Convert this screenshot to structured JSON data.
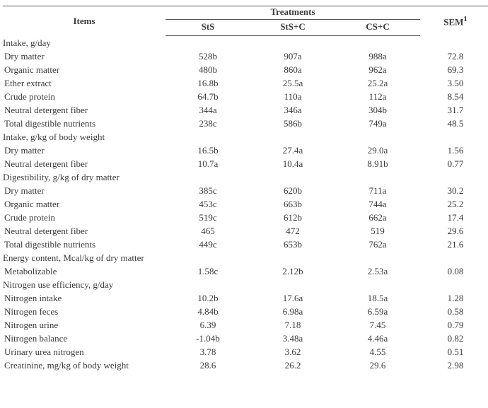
{
  "header": {
    "items": "Items",
    "treatments": "Treatments",
    "sem": "SEM",
    "sem_sup": "1",
    "sub": [
      "StS",
      "StS+C",
      "CS+C"
    ]
  },
  "rows": [
    {
      "section": true,
      "label": "Intake, g/day"
    },
    {
      "label": "Dry matter",
      "v": [
        "528b",
        "907a",
        "988a"
      ],
      "sem": "72.8"
    },
    {
      "label": "Organic matter",
      "v": [
        "480b",
        "860a",
        "962a"
      ],
      "sem": "69.3"
    },
    {
      "label": "Ether extract",
      "v": [
        "16.8b",
        "25.5a",
        "25.2a"
      ],
      "sem": "3.50"
    },
    {
      "label": "Crude protein",
      "v": [
        "64.7b",
        "110a",
        "112a"
      ],
      "sem": "8.54"
    },
    {
      "label": "Neutral detergent fiber",
      "v": [
        "344a",
        "346a",
        "304b"
      ],
      "sem": "31.7"
    },
    {
      "label": "Total digestible nutrients",
      "v": [
        "238c",
        "586b",
        "749a"
      ],
      "sem": "48.5"
    },
    {
      "section": true,
      "label": "Intake, g/kg of body weight"
    },
    {
      "label": "Dry matter",
      "v": [
        "16.5b",
        "27.4a",
        "29.0a"
      ],
      "sem": "1.56"
    },
    {
      "label": "Neutral detergent fiber",
      "v": [
        "10.7a",
        "10.4a",
        "8.91b"
      ],
      "sem": "0.77"
    },
    {
      "section": true,
      "label": "Digestibility, g/kg of dry matter"
    },
    {
      "label": "Dry matter",
      "v": [
        "385c",
        "620b",
        "711a"
      ],
      "sem": "30.2"
    },
    {
      "label": "Organic matter",
      "v": [
        "453c",
        "663b",
        "744a"
      ],
      "sem": "25.2"
    },
    {
      "label": "Crude protein",
      "v": [
        "519c",
        "612b",
        "662a"
      ],
      "sem": "17.4"
    },
    {
      "label": "Neutral detergent fiber",
      "v": [
        "465",
        "472",
        "519"
      ],
      "sem": "29.6"
    },
    {
      "label": "Total digestible nutrients",
      "v": [
        "449c",
        "653b",
        "762a"
      ],
      "sem": "21.6"
    },
    {
      "section": true,
      "label": "Energy content, Mcal/kg of dry matter"
    },
    {
      "label": "Metabolizable",
      "v": [
        "1.58c",
        "2.12b",
        "2.53a"
      ],
      "sem": "0.08"
    },
    {
      "section": true,
      "label": "Nitrogen use efficiency, g/day"
    },
    {
      "label": "Nitrogen intake",
      "v": [
        "10.2b",
        "17.6a",
        "18.5a"
      ],
      "sem": "1.28"
    },
    {
      "label": "Nitrogen feces",
      "v": [
        "4.84b",
        "6.98a",
        "6.59a"
      ],
      "sem": "0.58"
    },
    {
      "label": "Nitrogen urine",
      "v": [
        "6.39",
        "7.18",
        "7.45"
      ],
      "sem": "0.79"
    },
    {
      "label": "Nitrogen balance",
      "v": [
        "-1.04b",
        "3.48a",
        "4.46a"
      ],
      "sem": "0.82"
    },
    {
      "label": "Urinary urea nitrogen",
      "v": [
        "3.78",
        "3.62",
        "4.55"
      ],
      "sem": "0.51"
    },
    {
      "label": "Creatinine, mg/kg of body weight",
      "v": [
        "28.6",
        "26.2",
        "29.6"
      ],
      "sem": "2.98"
    }
  ]
}
